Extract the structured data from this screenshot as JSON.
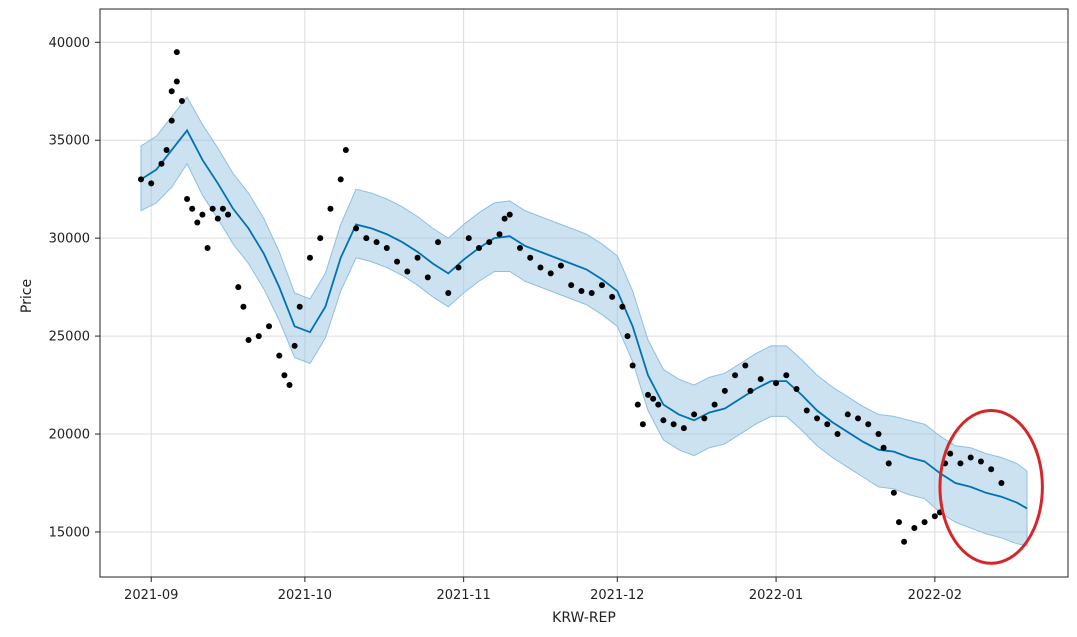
{
  "chart_data": {
    "type": "line",
    "title": "",
    "xlabel": "KRW-REP",
    "ylabel": "Price",
    "x_ticks": [
      "2021-09",
      "2021-10",
      "2021-11",
      "2021-12",
      "2022-01",
      "2022-02"
    ],
    "y_ticks": [
      15000,
      20000,
      25000,
      30000,
      35000,
      40000
    ],
    "xlim": [
      "2021-08-22",
      "2022-02-27"
    ],
    "ylim": [
      12700,
      41700
    ],
    "grid": true,
    "legend": "none",
    "colors": {
      "forecast_line": "#0072B2",
      "uncertainty_band": "#8fbfdf",
      "observed_points": "#000000",
      "highlight_circle": "#d62728"
    },
    "annotation": {
      "type": "circle",
      "note": "highlighted forecast region",
      "center": {
        "x": "2022-02-12",
        "y": 17300
      },
      "radius_days": 10,
      "radius_price": 3900
    },
    "series": [
      {
        "role": "forecast",
        "x": [
          "2021-08-30",
          "2021-09-02",
          "2021-09-05",
          "2021-09-08",
          "2021-09-11",
          "2021-09-14",
          "2021-09-17",
          "2021-09-20",
          "2021-09-23",
          "2021-09-26",
          "2021-09-29",
          "2021-10-02",
          "2021-10-05",
          "2021-10-08",
          "2021-10-11",
          "2021-10-14",
          "2021-10-17",
          "2021-10-20",
          "2021-10-23",
          "2021-10-26",
          "2021-10-29",
          "2021-11-01",
          "2021-11-04",
          "2021-11-07",
          "2021-11-10",
          "2021-11-13",
          "2021-11-16",
          "2021-11-19",
          "2021-11-22",
          "2021-11-25",
          "2021-11-28",
          "2021-12-01",
          "2021-12-04",
          "2021-12-07",
          "2021-12-10",
          "2021-12-13",
          "2021-12-16",
          "2021-12-19",
          "2021-12-22",
          "2021-12-25",
          "2021-12-28",
          "2021-12-31",
          "2022-01-03",
          "2022-01-06",
          "2022-01-09",
          "2022-01-12",
          "2022-01-15",
          "2022-01-18",
          "2022-01-21",
          "2022-01-24",
          "2022-01-27",
          "2022-01-30",
          "2022-02-02",
          "2022-02-05",
          "2022-02-08",
          "2022-02-11",
          "2022-02-14",
          "2022-02-17",
          "2022-02-19"
        ],
        "values": [
          33000,
          33500,
          34500,
          35500,
          34000,
          32800,
          31500,
          30500,
          29200,
          27500,
          25500,
          25200,
          26500,
          29000,
          30700,
          30500,
          30200,
          29800,
          29300,
          28700,
          28200,
          28900,
          29500,
          30000,
          30100,
          29600,
          29300,
          29000,
          28700,
          28400,
          27900,
          27300,
          25500,
          23000,
          21500,
          21000,
          20700,
          21100,
          21300,
          21800,
          22300,
          22700,
          22700,
          22000,
          21200,
          20600,
          20100,
          19600,
          19200,
          19100,
          18800,
          18600,
          18000,
          17500,
          17300,
          17000,
          16800,
          16500,
          16200
        ],
        "band_lower": [
          31400,
          31800,
          32600,
          33800,
          32200,
          31000,
          29700,
          28700,
          27400,
          25800,
          23900,
          23600,
          24900,
          27300,
          29000,
          28800,
          28500,
          28100,
          27600,
          27000,
          26500,
          27200,
          27800,
          28300,
          28300,
          27800,
          27500,
          27200,
          26900,
          26600,
          26100,
          25500,
          23700,
          21200,
          19700,
          19200,
          18900,
          19300,
          19500,
          20000,
          20500,
          20900,
          20900,
          20200,
          19400,
          18800,
          18300,
          17800,
          17300,
          17200,
          16900,
          16700,
          16000,
          15500,
          15200,
          14900,
          14700,
          14400,
          14300
        ],
        "band_upper": [
          34700,
          35200,
          36200,
          37200,
          35800,
          34600,
          33300,
          32300,
          31000,
          29300,
          27200,
          26900,
          28200,
          30700,
          32500,
          32300,
          32000,
          31600,
          31100,
          30500,
          30000,
          30700,
          31300,
          31800,
          31900,
          31400,
          31100,
          30800,
          30500,
          30200,
          29700,
          29100,
          27300,
          24800,
          23300,
          22800,
          22500,
          22900,
          23100,
          23600,
          24100,
          24500,
          24500,
          23800,
          23000,
          22400,
          21900,
          21400,
          21000,
          20900,
          20700,
          20500,
          19900,
          19400,
          19300,
          19000,
          18800,
          18500,
          18100
        ]
      },
      {
        "role": "observed",
        "x": [
          "2021-08-30",
          "2021-09-01",
          "2021-09-03",
          "2021-09-04",
          "2021-09-05",
          "2021-09-05",
          "2021-09-06",
          "2021-09-06",
          "2021-09-07",
          "2021-09-08",
          "2021-09-09",
          "2021-09-10",
          "2021-09-11",
          "2021-09-12",
          "2021-09-13",
          "2021-09-14",
          "2021-09-15",
          "2021-09-16",
          "2021-09-18",
          "2021-09-19",
          "2021-09-20",
          "2021-09-22",
          "2021-09-24",
          "2021-09-26",
          "2021-09-27",
          "2021-09-28",
          "2021-09-29",
          "2021-09-30",
          "2021-10-02",
          "2021-10-04",
          "2021-10-06",
          "2021-10-08",
          "2021-10-09",
          "2021-10-11",
          "2021-10-13",
          "2021-10-15",
          "2021-10-17",
          "2021-10-19",
          "2021-10-21",
          "2021-10-23",
          "2021-10-25",
          "2021-10-27",
          "2021-10-29",
          "2021-10-31",
          "2021-11-02",
          "2021-11-04",
          "2021-11-06",
          "2021-11-08",
          "2021-11-09",
          "2021-11-10",
          "2021-11-12",
          "2021-11-14",
          "2021-11-16",
          "2021-11-18",
          "2021-11-20",
          "2021-11-22",
          "2021-11-24",
          "2021-11-26",
          "2021-11-28",
          "2021-11-30",
          "2021-12-02",
          "2021-12-03",
          "2021-12-04",
          "2021-12-05",
          "2021-12-06",
          "2021-12-07",
          "2021-12-08",
          "2021-12-09",
          "2021-12-10",
          "2021-12-12",
          "2021-12-14",
          "2021-12-16",
          "2021-12-18",
          "2021-12-20",
          "2021-12-22",
          "2021-12-24",
          "2021-12-26",
          "2021-12-27",
          "2021-12-29",
          "2022-01-01",
          "2022-01-03",
          "2022-01-05",
          "2022-01-07",
          "2022-01-09",
          "2022-01-11",
          "2022-01-13",
          "2022-01-15",
          "2022-01-17",
          "2022-01-19",
          "2022-01-21",
          "2022-01-22",
          "2022-01-23",
          "2022-01-24",
          "2022-01-25",
          "2022-01-26",
          "2022-01-28",
          "2022-01-30",
          "2022-02-01",
          "2022-02-02",
          "2022-02-03",
          "2022-02-04",
          "2022-02-06",
          "2022-02-08",
          "2022-02-10",
          "2022-02-12",
          "2022-02-14"
        ],
        "values": [
          33000,
          32800,
          33800,
          34500,
          36000,
          37500,
          39500,
          38000,
          37000,
          32000,
          31500,
          30800,
          31200,
          29500,
          31500,
          31000,
          31500,
          31200,
          27500,
          26500,
          24800,
          25000,
          25500,
          24000,
          23000,
          22500,
          24500,
          26500,
          29000,
          30000,
          31500,
          33000,
          34500,
          30500,
          30000,
          29800,
          29500,
          28800,
          28300,
          29000,
          28000,
          29800,
          27200,
          28500,
          30000,
          29500,
          29800,
          30200,
          31000,
          31200,
          29500,
          29000,
          28500,
          28200,
          28600,
          27600,
          27300,
          27200,
          27600,
          27000,
          26500,
          25000,
          23500,
          21500,
          20500,
          22000,
          21800,
          21500,
          20700,
          20500,
          20300,
          21000,
          20800,
          21500,
          22200,
          23000,
          23500,
          22200,
          22800,
          22600,
          23000,
          22300,
          21200,
          20800,
          20500,
          20000,
          21000,
          20800,
          20500,
          20000,
          19300,
          18500,
          17000,
          15500,
          14500,
          15200,
          15500,
          15800,
          16000,
          18500,
          19000,
          18500,
          18800,
          18600,
          18200,
          17500
        ]
      }
    ]
  }
}
